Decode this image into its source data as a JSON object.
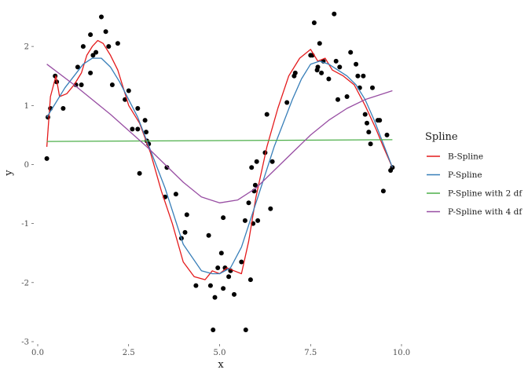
{
  "chart_data": {
    "type": "scatter",
    "xlabel": "x",
    "ylabel": "y",
    "xlim": [
      -0.2,
      10.0
    ],
    "ylim": [
      -3.0,
      2.6
    ],
    "x_ticks": [
      0.0,
      2.5,
      5.0,
      7.5,
      10.0
    ],
    "x_tick_labels": [
      "0.0",
      "2.5",
      "5.0",
      "7.5",
      "10.0"
    ],
    "y_ticks": [
      -3,
      -2,
      -1,
      0,
      1,
      2
    ],
    "y_tick_labels": [
      "-3",
      "-2",
      "-1",
      "0",
      "1",
      "2"
    ],
    "grid": false,
    "legend": {
      "title": "Spline",
      "position": "right"
    },
    "points": [
      [
        0.25,
        0.1
      ],
      [
        0.28,
        0.8
      ],
      [
        0.35,
        0.95
      ],
      [
        0.48,
        1.5
      ],
      [
        0.52,
        1.4
      ],
      [
        0.7,
        0.95
      ],
      [
        1.05,
        1.35
      ],
      [
        1.1,
        1.65
      ],
      [
        1.2,
        1.35
      ],
      [
        1.25,
        2.0
      ],
      [
        1.45,
        2.2
      ],
      [
        1.45,
        1.55
      ],
      [
        1.52,
        1.85
      ],
      [
        1.6,
        1.9
      ],
      [
        1.75,
        2.5
      ],
      [
        1.87,
        2.25
      ],
      [
        1.95,
        2.0
      ],
      [
        2.05,
        1.35
      ],
      [
        2.2,
        2.05
      ],
      [
        2.4,
        1.1
      ],
      [
        2.5,
        1.25
      ],
      [
        2.6,
        0.6
      ],
      [
        2.75,
        0.95
      ],
      [
        2.75,
        0.6
      ],
      [
        2.8,
        -0.15
      ],
      [
        2.95,
        0.75
      ],
      [
        2.98,
        0.55
      ],
      [
        3.0,
        0.4
      ],
      [
        3.05,
        0.35
      ],
      [
        3.5,
        -0.55
      ],
      [
        3.55,
        -0.05
      ],
      [
        3.8,
        -0.5
      ],
      [
        3.95,
        -1.25
      ],
      [
        4.05,
        -1.15
      ],
      [
        4.1,
        -0.85
      ],
      [
        4.35,
        -2.05
      ],
      [
        4.7,
        -1.2
      ],
      [
        4.75,
        -2.05
      ],
      [
        4.82,
        -2.8
      ],
      [
        4.87,
        -2.25
      ],
      [
        4.95,
        -1.75
      ],
      [
        5.05,
        -1.5
      ],
      [
        5.1,
        -0.9
      ],
      [
        5.1,
        -2.1
      ],
      [
        5.15,
        -1.75
      ],
      [
        5.25,
        -1.9
      ],
      [
        5.3,
        -1.8
      ],
      [
        5.4,
        -2.2
      ],
      [
        5.6,
        -1.65
      ],
      [
        5.7,
        -0.95
      ],
      [
        5.72,
        -2.8
      ],
      [
        5.8,
        -0.65
      ],
      [
        5.85,
        -1.95
      ],
      [
        5.88,
        -0.05
      ],
      [
        5.92,
        -1.0
      ],
      [
        5.95,
        -0.45
      ],
      [
        5.98,
        -0.35
      ],
      [
        6.02,
        0.05
      ],
      [
        6.05,
        -0.95
      ],
      [
        6.25,
        0.2
      ],
      [
        6.3,
        0.85
      ],
      [
        6.4,
        -0.75
      ],
      [
        6.45,
        0.05
      ],
      [
        6.85,
        1.05
      ],
      [
        7.05,
        1.5
      ],
      [
        7.08,
        1.55
      ],
      [
        7.5,
        1.85
      ],
      [
        7.55,
        1.85
      ],
      [
        7.6,
        2.4
      ],
      [
        7.68,
        1.6
      ],
      [
        7.7,
        1.65
      ],
      [
        7.75,
        2.05
      ],
      [
        7.8,
        1.55
      ],
      [
        7.85,
        1.75
      ],
      [
        8.0,
        1.45
      ],
      [
        8.15,
        2.55
      ],
      [
        8.2,
        1.75
      ],
      [
        8.25,
        1.1
      ],
      [
        8.3,
        1.65
      ],
      [
        8.5,
        1.15
      ],
      [
        8.6,
        1.9
      ],
      [
        8.75,
        1.7
      ],
      [
        8.8,
        1.5
      ],
      [
        8.85,
        1.3
      ],
      [
        8.95,
        1.5
      ],
      [
        9.0,
        0.85
      ],
      [
        9.05,
        0.7
      ],
      [
        9.1,
        0.55
      ],
      [
        9.15,
        0.35
      ],
      [
        9.2,
        1.3
      ],
      [
        9.35,
        0.75
      ],
      [
        9.4,
        0.75
      ],
      [
        9.5,
        -0.45
      ],
      [
        9.6,
        0.5
      ],
      [
        9.7,
        -0.1
      ],
      [
        9.75,
        -0.05
      ]
    ],
    "series": [
      {
        "name": "B-Spline",
        "color": "#e41a1c",
        "x": [
          0.25,
          0.35,
          0.5,
          0.6,
          0.8,
          1.0,
          1.2,
          1.35,
          1.5,
          1.65,
          1.8,
          2.0,
          2.2,
          2.5,
          2.8,
          3.1,
          3.4,
          3.7,
          4.0,
          4.3,
          4.6,
          4.8,
          5.0,
          5.2,
          5.4,
          5.6,
          5.8,
          6.0,
          6.3,
          6.6,
          6.9,
          7.2,
          7.5,
          7.7,
          7.9,
          8.1,
          8.4,
          8.7,
          9.0,
          9.3,
          9.5,
          9.75
        ],
        "y": [
          0.3,
          1.15,
          1.5,
          1.15,
          1.2,
          1.35,
          1.55,
          1.85,
          2.0,
          2.1,
          2.05,
          1.85,
          1.6,
          1.0,
          0.7,
          0.2,
          -0.45,
          -1.0,
          -1.65,
          -1.9,
          -1.95,
          -1.8,
          -1.85,
          -1.75,
          -1.8,
          -1.85,
          -1.3,
          -0.55,
          0.3,
          0.95,
          1.5,
          1.8,
          1.95,
          1.75,
          1.8,
          1.6,
          1.5,
          1.35,
          1.0,
          0.6,
          0.3,
          -0.05
        ]
      },
      {
        "name": "P-Spline",
        "color": "#377eb8",
        "x": [
          0.25,
          0.5,
          0.75,
          1.0,
          1.25,
          1.5,
          1.75,
          2.0,
          2.25,
          2.5,
          2.75,
          3.0,
          3.5,
          4.0,
          4.5,
          4.8,
          5.0,
          5.3,
          5.6,
          6.0,
          6.5,
          7.0,
          7.25,
          7.5,
          7.75,
          8.0,
          8.25,
          8.5,
          8.75,
          9.0,
          9.25,
          9.5,
          9.75
        ],
        "y": [
          0.8,
          1.05,
          1.3,
          1.5,
          1.7,
          1.8,
          1.8,
          1.65,
          1.4,
          1.1,
          0.8,
          0.4,
          -0.4,
          -1.35,
          -1.8,
          -1.85,
          -1.85,
          -1.75,
          -1.4,
          -0.65,
          0.3,
          1.1,
          1.45,
          1.7,
          1.75,
          1.7,
          1.6,
          1.5,
          1.35,
          1.1,
          0.75,
          0.35,
          -0.05
        ]
      },
      {
        "name": "P-Spline with 2 df",
        "color": "#4daf4a",
        "x": [
          0.25,
          9.75
        ],
        "y": [
          0.39,
          0.42
        ]
      },
      {
        "name": "P-Spline with 4 df",
        "color": "#984ea3",
        "x": [
          0.25,
          1.0,
          2.0,
          3.0,
          4.0,
          4.5,
          5.0,
          5.5,
          6.0,
          6.5,
          7.0,
          7.5,
          8.0,
          8.5,
          9.0,
          9.5,
          9.75
        ],
        "y": [
          1.7,
          1.35,
          0.85,
          0.3,
          -0.3,
          -0.55,
          -0.65,
          -0.6,
          -0.4,
          -0.1,
          0.2,
          0.5,
          0.75,
          0.95,
          1.1,
          1.2,
          1.25
        ]
      }
    ]
  }
}
